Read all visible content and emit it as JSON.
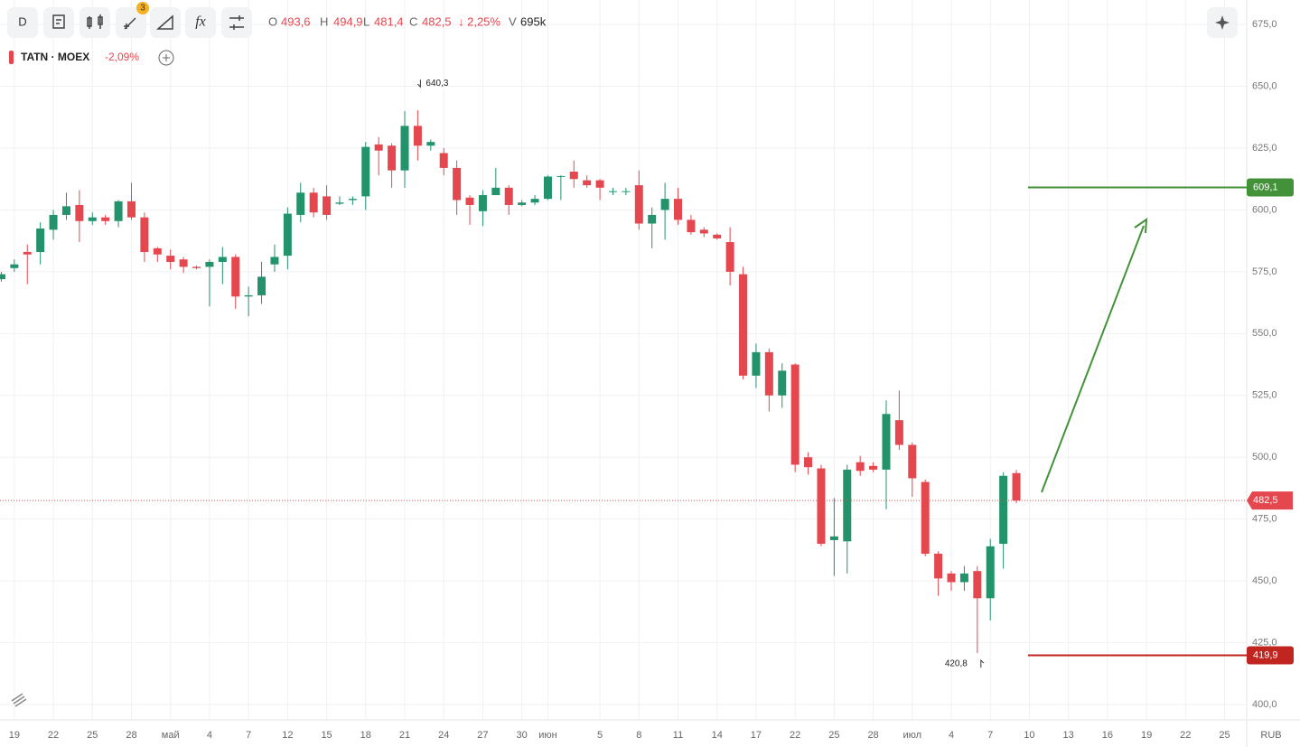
{
  "toolbar": {
    "interval": "D",
    "badge": "3"
  },
  "ohlc": {
    "o_label": "O",
    "o": "493,6",
    "h_label": "H",
    "h": "494,9",
    "l_label": "L",
    "l": "481,4",
    "c_label": "C",
    "c": "482,5",
    "change": "↓ 2,25%",
    "v_label": "V",
    "v": "695k"
  },
  "symbol": {
    "name": "TATN · MOEX",
    "change": "-2,09%"
  },
  "chart_data": {
    "type": "candlestick",
    "currency": "RUB",
    "up_color": "#22936a",
    "down_color": "#e5474f",
    "open": [
      572,
      576.5,
      583,
      583,
      592,
      598,
      602,
      595.5,
      597,
      595.5,
      603.5,
      597,
      584.5,
      581.5,
      580,
      577,
      577,
      579,
      581,
      565,
      565.5,
      578,
      581.5,
      598,
      607,
      605.5,
      602.5,
      604,
      605.5,
      626.5,
      626,
      616,
      634,
      626,
      623,
      617,
      605,
      599.5,
      606,
      609,
      602,
      603,
      604.5,
      613.5,
      615.5,
      612,
      612,
      607.5,
      607.5,
      610,
      594.5,
      600,
      604.5,
      596,
      592,
      590,
      587,
      574,
      533,
      542.5,
      525,
      537.5,
      500,
      495.5,
      466.5,
      466,
      498,
      496.5,
      495,
      515,
      505,
      490,
      461,
      453,
      449.5,
      454,
      443,
      465,
      493.6
    ],
    "high": [
      575,
      580,
      586,
      595,
      600,
      607,
      608,
      599,
      598,
      604,
      611,
      599,
      585,
      584,
      581,
      577.5,
      580,
      585,
      582,
      569,
      579,
      586,
      601,
      611,
      609,
      610,
      605.5,
      605.5,
      627.5,
      629.5,
      627,
      640,
      640.3,
      628.5,
      625,
      620,
      606,
      608,
      617,
      610,
      604,
      606,
      614,
      614,
      620,
      614,
      612.5,
      609,
      609,
      616,
      601,
      611,
      609,
      598,
      593,
      590.5,
      593,
      577,
      546,
      544,
      538,
      538,
      502,
      497,
      483.5,
      497,
      500.5,
      498,
      523,
      527,
      506,
      491,
      462,
      454,
      456,
      456,
      467,
      494,
      494.9
    ],
    "low": [
      571,
      575,
      570,
      578,
      588,
      596,
      587,
      594,
      594,
      593,
      596,
      579,
      579,
      576,
      574.5,
      576,
      561,
      570,
      560,
      557,
      562,
      575,
      576,
      595,
      597,
      596,
      602,
      602,
      600,
      614,
      609,
      609,
      620,
      624,
      614,
      598,
      594,
      593.5,
      606,
      598,
      601.5,
      602,
      604,
      604,
      609,
      609,
      604,
      606,
      606,
      592,
      584.5,
      588,
      594,
      590,
      589,
      588,
      569.5,
      531.5,
      528,
      518.5,
      520,
      494,
      493,
      464,
      452,
      453,
      492.5,
      494,
      479,
      503,
      484,
      460,
      444,
      446,
      446,
      420.8,
      434,
      455,
      481.4
    ],
    "close": [
      574,
      578,
      582,
      592.5,
      598,
      601.5,
      595.5,
      597,
      595.5,
      603.5,
      597,
      583,
      582,
      579,
      577,
      576.5,
      579,
      581,
      565,
      565.5,
      573,
      581,
      598.5,
      607,
      599,
      598,
      603,
      604.5,
      625.5,
      624,
      616,
      634,
      626,
      627.5,
      617,
      604,
      602,
      606,
      609,
      602,
      603,
      604.5,
      613.5,
      613.7,
      612.5,
      610,
      609,
      607.6,
      607.6,
      594.5,
      598,
      604.5,
      596,
      591,
      590.5,
      588.5,
      575,
      533,
      542.5,
      525,
      535,
      497,
      496,
      465,
      468,
      495,
      494.5,
      495,
      517.5,
      505,
      491.5,
      461,
      451,
      449.5,
      453,
      443,
      464,
      492.5,
      482.5
    ],
    "xlim": [
      -0.1,
      95.7
    ],
    "xticks": [
      {
        "value": 1,
        "label": "19"
      },
      {
        "value": 4,
        "label": "22"
      },
      {
        "value": 7,
        "label": "25"
      },
      {
        "value": 10,
        "label": "28"
      },
      {
        "value": 13,
        "label": "май"
      },
      {
        "value": 16,
        "label": "4"
      },
      {
        "value": 19,
        "label": "7"
      },
      {
        "value": 22,
        "label": "12"
      },
      {
        "value": 25,
        "label": "15"
      },
      {
        "value": 28,
        "label": "18"
      },
      {
        "value": 31,
        "label": "21"
      },
      {
        "value": 34,
        "label": "24"
      },
      {
        "value": 37,
        "label": "27"
      },
      {
        "value": 40,
        "label": "30"
      },
      {
        "value": 42,
        "label": "июн"
      },
      {
        "value": 46,
        "label": "5"
      },
      {
        "value": 49,
        "label": "8"
      },
      {
        "value": 52,
        "label": "11"
      },
      {
        "value": 55,
        "label": "14"
      },
      {
        "value": 58,
        "label": "17"
      },
      {
        "value": 61,
        "label": "22"
      },
      {
        "value": 64,
        "label": "25"
      },
      {
        "value": 67,
        "label": "28"
      },
      {
        "value": 70,
        "label": "июл"
      },
      {
        "value": 73,
        "label": "4"
      },
      {
        "value": 76,
        "label": "7"
      },
      {
        "value": 79,
        "label": "10"
      },
      {
        "value": 82,
        "label": "13"
      },
      {
        "value": 85,
        "label": "16"
      },
      {
        "value": 88,
        "label": "19"
      },
      {
        "value": 91,
        "label": "22"
      },
      {
        "value": 94,
        "label": "25"
      }
    ],
    "ylim": [
      393.8,
      684.9
    ],
    "yticks": [
      {
        "value": 400,
        "label": "400,0"
      },
      {
        "value": 425,
        "label": "425,0"
      },
      {
        "value": 450,
        "label": "450,0"
      },
      {
        "value": 475,
        "label": "475,0"
      },
      {
        "value": 500,
        "label": "500,0"
      },
      {
        "value": 525,
        "label": "525,0"
      },
      {
        "value": 550,
        "label": "550,0"
      },
      {
        "value": 575,
        "label": "575,0"
      },
      {
        "value": 600,
        "label": "600,0"
      },
      {
        "value": 625,
        "label": "625,0"
      },
      {
        "value": 650,
        "label": "650,0"
      },
      {
        "value": 675,
        "label": "675,0"
      }
    ],
    "grid": true,
    "last_price": {
      "value": 482.5,
      "label": "482,5",
      "color": "#e5474f"
    },
    "levels": [
      {
        "value": 609.1,
        "label": "609,1",
        "color": "#43923a"
      },
      {
        "value": 419.9,
        "label": "419,9",
        "color": "#c0261f"
      }
    ],
    "annotations": [
      {
        "x": 32,
        "value": 640.3,
        "label": "640,3",
        "side": "top"
      },
      {
        "x": 75,
        "value": 420.8,
        "label": "420,8",
        "side": "bottom"
      }
    ]
  }
}
